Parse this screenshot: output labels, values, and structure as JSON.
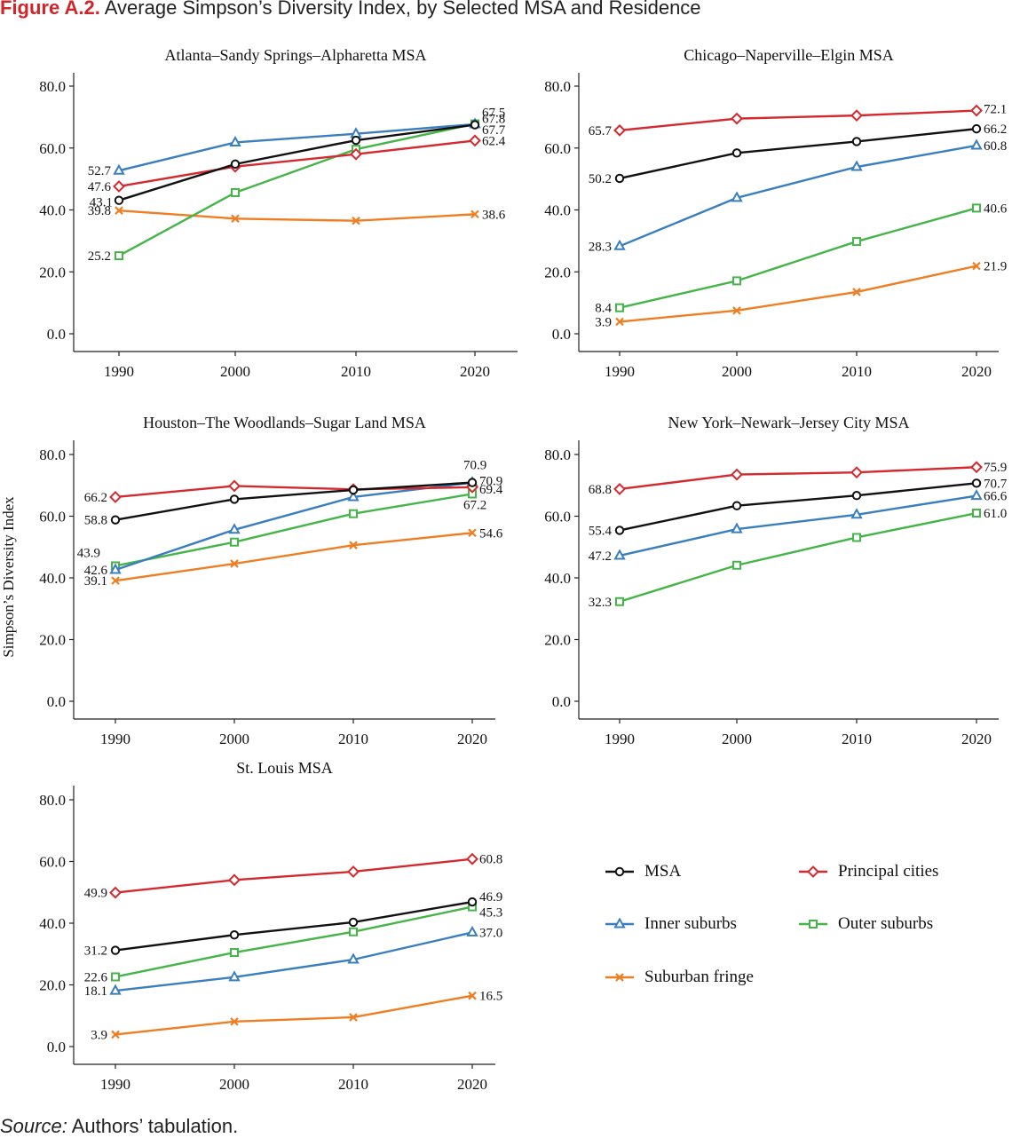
{
  "figure": {
    "label": "Figure A.2.",
    "title": "Average Simpson’s Diversity Index, by Selected MSA and Residence",
    "source_label": "Source:",
    "source_text": "Authors’ tabulation.",
    "y_axis_label": "Simpson’s Diversity Index"
  },
  "series_styles": [
    {
      "key": "msa",
      "name": "MSA",
      "color": "#111111",
      "marker": "circle"
    },
    {
      "key": "principal",
      "name": "Principal cities",
      "color": "#d42a2f",
      "marker": "diamond"
    },
    {
      "key": "inner",
      "name": "Inner suburbs",
      "color": "#3a7ebf",
      "marker": "triangle"
    },
    {
      "key": "outer",
      "name": "Outer suburbs",
      "color": "#45b549",
      "marker": "square"
    },
    {
      "key": "fringe",
      "name": "Suburban fringe",
      "color": "#ef7d22",
      "marker": "x"
    }
  ],
  "chart_data": [
    {
      "type": "line",
      "title": "Atlanta–Sandy Springs–Alpharetta MSA",
      "x": [
        "1990",
        "2000",
        "2010",
        "2020"
      ],
      "ylim": [
        0,
        80
      ],
      "yticks": [
        "0.0",
        "20.0",
        "40.0",
        "60.0",
        "80.0"
      ],
      "series": [
        {
          "name": "MSA",
          "values": [
            43.1,
            54.8,
            62.5,
            67.5
          ],
          "labels": {
            "start": "43.1",
            "end": "67.5"
          }
        },
        {
          "name": "Principal cities",
          "values": [
            47.6,
            54.0,
            58.0,
            62.4
          ],
          "labels": {
            "start": "47.6",
            "end": "62.4"
          }
        },
        {
          "name": "Inner suburbs",
          "values": [
            52.7,
            61.8,
            64.6,
            67.7
          ],
          "labels": {
            "start": "52.7",
            "end": "67.7"
          }
        },
        {
          "name": "Outer suburbs",
          "values": [
            25.2,
            45.6,
            59.6,
            67.8
          ],
          "labels": {
            "start": "25.2",
            "end": "67.8"
          }
        },
        {
          "name": "Suburban fringe",
          "values": [
            39.8,
            37.2,
            36.5,
            38.6
          ],
          "labels": {
            "start": "39.8",
            "end": "38.6"
          }
        }
      ]
    },
    {
      "type": "line",
      "title": "Chicago–Naperville–Elgin MSA",
      "x": [
        "1990",
        "2000",
        "2010",
        "2020"
      ],
      "ylim": [
        0,
        80
      ],
      "yticks": [
        "0.0",
        "20.0",
        "40.0",
        "60.0",
        "80.0"
      ],
      "series": [
        {
          "name": "MSA",
          "values": [
            50.2,
            58.4,
            62.1,
            66.2
          ],
          "labels": {
            "start": "50.2",
            "end": "66.2"
          }
        },
        {
          "name": "Principal cities",
          "values": [
            65.7,
            69.5,
            70.5,
            72.1
          ],
          "labels": {
            "start": "65.7",
            "end": "72.1"
          }
        },
        {
          "name": "Inner suburbs",
          "values": [
            28.3,
            43.9,
            53.9,
            60.8
          ],
          "labels": {
            "start": "28.3",
            "end": "60.8"
          }
        },
        {
          "name": "Outer suburbs",
          "values": [
            8.4,
            17.1,
            29.8,
            40.6
          ],
          "labels": {
            "start": "8.4",
            "end": "40.6"
          }
        },
        {
          "name": "Suburban fringe",
          "values": [
            3.9,
            7.5,
            13.5,
            21.9
          ],
          "labels": {
            "start": "3.9",
            "end": "21.9"
          }
        }
      ]
    },
    {
      "type": "line",
      "title": "Houston–The Woodlands–Sugar Land MSA",
      "x": [
        "1990",
        "2000",
        "2010",
        "2020"
      ],
      "ylim": [
        0,
        80
      ],
      "yticks": [
        "0.0",
        "20.0",
        "40.0",
        "60.0",
        "80.0"
      ],
      "series": [
        {
          "name": "MSA",
          "values": [
            58.8,
            65.5,
            68.5,
            70.9
          ],
          "labels": {
            "start": "58.8",
            "end": "70.9"
          }
        },
        {
          "name": "Principal cities",
          "values": [
            66.2,
            69.8,
            68.7,
            69.4
          ],
          "labels": {
            "start": "66.2",
            "end": "69.4"
          }
        },
        {
          "name": "Inner suburbs",
          "values": [
            42.6,
            55.6,
            66.2,
            70.9
          ],
          "labels": {
            "start": "42.6",
            "end": "70.9"
          }
        },
        {
          "name": "Outer suburbs",
          "values": [
            43.9,
            51.6,
            60.8,
            67.2
          ],
          "labels": {
            "start": "43.9",
            "end": "67.2"
          }
        },
        {
          "name": "Suburban fringe",
          "values": [
            39.1,
            44.6,
            50.6,
            54.6
          ],
          "labels": {
            "start": "39.1",
            "end": "54.6"
          }
        }
      ]
    },
    {
      "type": "line",
      "title": "New York–Newark–Jersey City MSA",
      "x": [
        "1990",
        "2000",
        "2010",
        "2020"
      ],
      "ylim": [
        0,
        80
      ],
      "yticks": [
        "0.0",
        "20.0",
        "40.0",
        "60.0",
        "80.0"
      ],
      "series": [
        {
          "name": "MSA",
          "values": [
            55.4,
            63.4,
            66.7,
            70.7
          ],
          "labels": {
            "start": "55.4",
            "end": "70.7"
          }
        },
        {
          "name": "Principal cities",
          "values": [
            68.8,
            73.5,
            74.2,
            75.9
          ],
          "labels": {
            "start": "68.8",
            "end": "75.9"
          }
        },
        {
          "name": "Inner suburbs",
          "values": [
            47.2,
            55.8,
            60.5,
            66.6
          ],
          "labels": {
            "start": "47.2",
            "end": "66.6"
          }
        },
        {
          "name": "Outer suburbs",
          "values": [
            32.3,
            44.1,
            53.1,
            61.0
          ],
          "labels": {
            "start": "32.3",
            "end": "61.0"
          }
        }
      ]
    },
    {
      "type": "line",
      "title": "St. Louis MSA",
      "x": [
        "1990",
        "2000",
        "2010",
        "2020"
      ],
      "ylim": [
        0,
        80
      ],
      "yticks": [
        "0.0",
        "20.0",
        "40.0",
        "60.0",
        "80.0"
      ],
      "series": [
        {
          "name": "MSA",
          "values": [
            31.2,
            36.2,
            40.3,
            46.9
          ],
          "labels": {
            "start": "31.2",
            "end": "46.9"
          }
        },
        {
          "name": "Principal cities",
          "values": [
            49.9,
            54.0,
            56.7,
            60.8
          ],
          "labels": {
            "start": "49.9",
            "end": "60.8"
          }
        },
        {
          "name": "Inner suburbs",
          "values": [
            18.1,
            22.5,
            28.2,
            37.0
          ],
          "labels": {
            "start": "18.1",
            "end": "37.0"
          }
        },
        {
          "name": "Outer suburbs",
          "values": [
            22.6,
            30.5,
            37.2,
            45.3
          ],
          "labels": {
            "start": "22.6",
            "end": "45.3"
          }
        },
        {
          "name": "Suburban fringe",
          "values": [
            3.9,
            8.1,
            9.5,
            16.5
          ],
          "labels": {
            "start": "3.9",
            "end": "16.5"
          }
        }
      ]
    }
  ]
}
